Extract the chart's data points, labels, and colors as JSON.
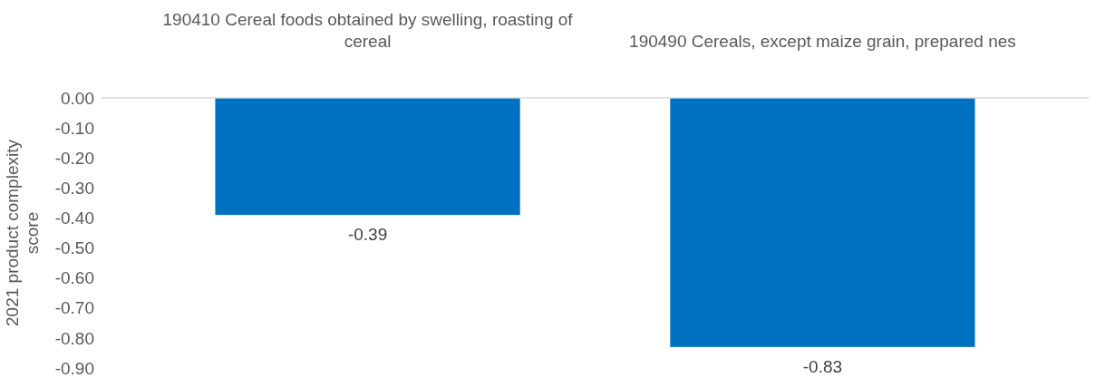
{
  "chart_data": {
    "type": "bar",
    "ylabel": "2021 product complexity score",
    "categories": [
      "190410 Cereal foods obtained by swelling, roasting of cereal",
      "190490 Cereals, except maize grain, prepared nes"
    ],
    "values": [
      -0.39,
      -0.83
    ],
    "color": "#0070c0",
    "data_labels": true,
    "ylim": [
      -0.9,
      0
    ],
    "yticks": [
      {
        "value": 0,
        "label": "0.00"
      },
      {
        "value": -0.1,
        "label": "-0.10"
      },
      {
        "value": -0.2,
        "label": "-0.20"
      },
      {
        "value": -0.3,
        "label": "-0.30"
      },
      {
        "value": -0.4,
        "label": "-0.40"
      },
      {
        "value": -0.5,
        "label": "-0.50"
      },
      {
        "value": -0.6,
        "label": "-0.60"
      },
      {
        "value": -0.7,
        "label": "-0.70"
      },
      {
        "value": -0.8,
        "label": "-0.80"
      },
      {
        "value": -0.9,
        "label": "-0.90"
      }
    ]
  }
}
